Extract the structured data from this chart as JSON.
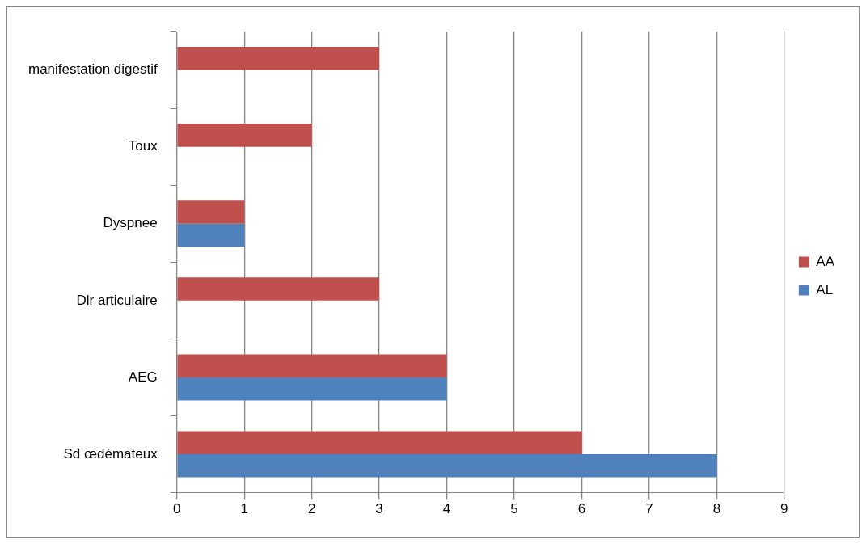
{
  "chart_data": {
    "type": "bar",
    "orientation": "horizontal",
    "categories": [
      "manifestation digestif",
      "Toux",
      "Dyspnee",
      "Dlr articulaire",
      "AEG",
      "Sd œdémateux"
    ],
    "series": [
      {
        "name": "AA",
        "color": "#c0504d",
        "values": [
          3,
          2,
          1,
          3,
          4,
          6
        ]
      },
      {
        "name": "AL",
        "color": "#4f81bd",
        "values": [
          null,
          null,
          1,
          null,
          4,
          8
        ]
      }
    ],
    "xlim": [
      0,
      9
    ],
    "xticks": [
      0,
      1,
      2,
      3,
      4,
      5,
      6,
      7,
      8,
      9
    ],
    "grid": "x",
    "legend": "right"
  }
}
